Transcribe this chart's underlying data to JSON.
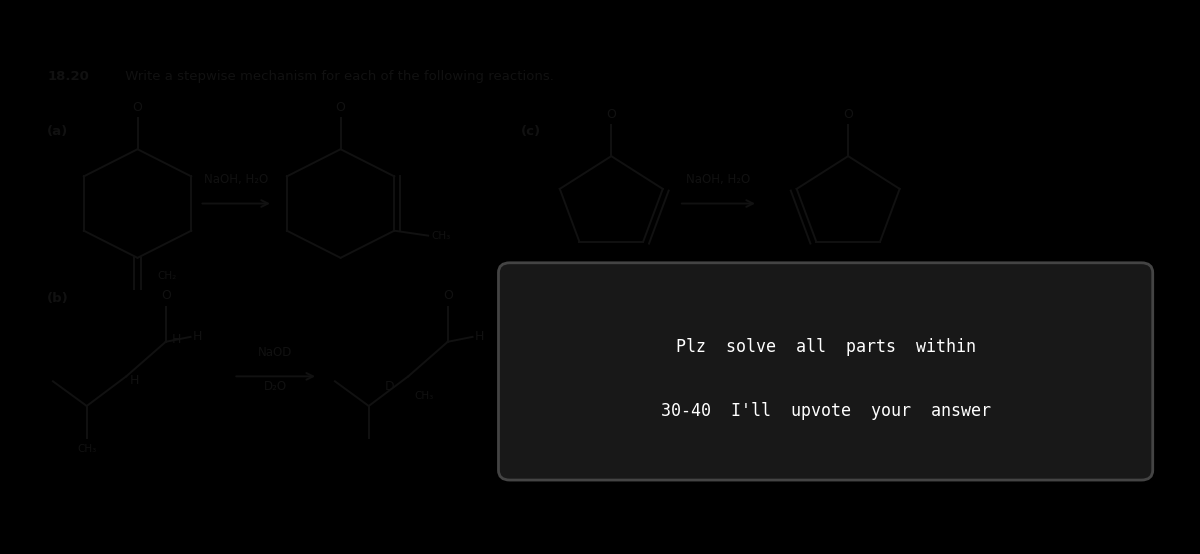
{
  "page_bg": "#cdc8b8",
  "black": "#000000",
  "dark_gray": "#111111",
  "title_bold": "18.20",
  "title_rest": " Write a stepwise mechanism for each of the following reactions.",
  "label_a": "(a)",
  "label_b": "(b)",
  "label_c": "(c)",
  "reagent_a": "NaOH, H₂O",
  "reagent_b1": "NaOD",
  "reagent_b2": "D₂O",
  "reagent_c": "NaOH, H₂O",
  "box_bg": "#181818",
  "box_text1": "Plz  solve  all  parts  within",
  "box_text2": "30-40  I'll  upvote  your  answer",
  "box_text_color": "#ffffff",
  "fig_width": 12.0,
  "fig_height": 5.54,
  "dpi": 100
}
